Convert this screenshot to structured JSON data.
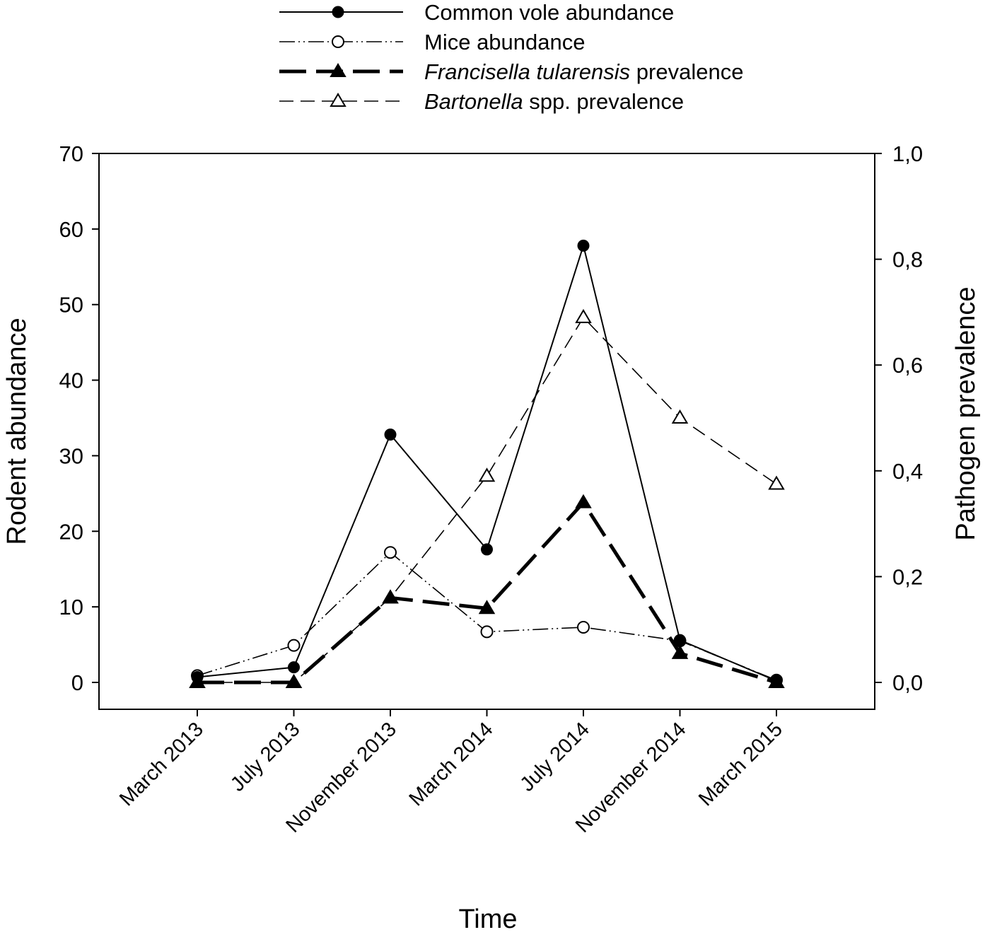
{
  "chart_data": {
    "type": "line",
    "title": "",
    "xlabel": "Time",
    "ylabel": "Rodent abundance",
    "y2label": "Pathogen prevalence",
    "categories": [
      "March 2013",
      "July 2013",
      "November 2013",
      "March 2014",
      "July 2014",
      "November 2014",
      "March 2015"
    ],
    "ylim": [
      0,
      70
    ],
    "y2lim": [
      0,
      1.0
    ],
    "yticks": [
      "0",
      "10",
      "20",
      "30",
      "40",
      "50",
      "60",
      "70"
    ],
    "y2ticks": [
      "0,0",
      "0,2",
      "0,4",
      "0,6",
      "0,8",
      "1,0"
    ],
    "grid": false,
    "legend_position": "top-center",
    "series": [
      {
        "name": "Common vole abundance",
        "name_italic": "",
        "name_rest": "Common vole abundance",
        "axis": "left",
        "marker": "filled-circle",
        "line": "solid",
        "values": [
          0.7,
          2.0,
          32.8,
          17.6,
          57.8,
          5.6,
          0.2
        ]
      },
      {
        "name": "Mice abundance",
        "name_italic": "",
        "name_rest": "Mice abundance",
        "axis": "left",
        "marker": "open-circle",
        "line": "dash-dot-dot",
        "values": [
          0.9,
          4.9,
          17.2,
          6.7,
          7.3,
          5.5,
          0.3
        ]
      },
      {
        "name": "Francisella tularensis prevalence",
        "name_italic": "Francisella tularensis",
        "name_rest": " prevalence",
        "axis": "right",
        "marker": "filled-triangle",
        "line": "long-dash-thick",
        "values": [
          0.0,
          0.0,
          0.16,
          0.14,
          0.34,
          0.055,
          0.0
        ]
      },
      {
        "name": "Bartonella spp. prevalence",
        "name_italic": "Bartonella",
        "name_rest": " spp. prevalence",
        "axis": "right",
        "marker": "open-triangle",
        "line": "dash",
        "values": [
          0.0,
          0.0,
          0.16,
          0.39,
          0.69,
          0.5,
          0.375
        ]
      }
    ]
  }
}
